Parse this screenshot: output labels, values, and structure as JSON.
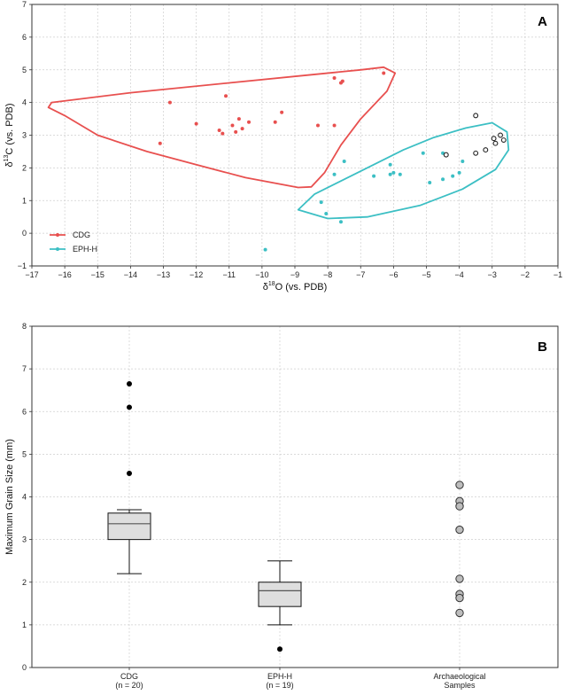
{
  "chart_data": [
    {
      "type": "scatter",
      "panel_label": "A",
      "xlabel_main": "δ",
      "xlabel_sup": "18",
      "xlabel_rest": "O (vs. PDB)",
      "ylabel_main": "δ",
      "ylabel_sup": "13",
      "ylabel_rest": "C (vs. PDB)",
      "xlim": [
        -17,
        -1
      ],
      "ylim": [
        -1,
        7
      ],
      "xticks": [
        -17,
        -16,
        -15,
        -14,
        -13,
        -12,
        -11,
        -10,
        -9,
        -8,
        -7,
        -6,
        -5,
        -4,
        -3,
        -2,
        -1
      ],
      "yticks": [
        -1,
        0,
        1,
        2,
        3,
        4,
        5,
        6,
        7
      ],
      "grid": true,
      "legend_position": "bottom-left",
      "series": [
        {
          "name": "CDG",
          "color": "#e8504f",
          "points": [
            [
              -12.8,
              4.0
            ],
            [
              -13.1,
              2.75
            ],
            [
              -12.0,
              3.35
            ],
            [
              -11.1,
              4.2
            ],
            [
              -11.3,
              3.15
            ],
            [
              -11.2,
              3.05
            ],
            [
              -10.9,
              3.3
            ],
            [
              -10.8,
              3.1
            ],
            [
              -10.7,
              3.5
            ],
            [
              -10.6,
              3.2
            ],
            [
              -10.4,
              3.4
            ],
            [
              -9.4,
              3.7
            ],
            [
              -9.6,
              3.4
            ],
            [
              -8.3,
              3.3
            ],
            [
              -7.8,
              3.3
            ],
            [
              -7.8,
              4.75
            ],
            [
              -7.6,
              4.6
            ],
            [
              -7.55,
              4.65
            ],
            [
              -6.3,
              4.9
            ]
          ],
          "envelope": [
            [
              -16.4,
              4.0
            ],
            [
              -14.0,
              4.3
            ],
            [
              -11.0,
              4.6
            ],
            [
              -8.5,
              4.85
            ],
            [
              -7.0,
              5.0
            ],
            [
              -6.3,
              5.08
            ],
            [
              -5.95,
              4.9
            ],
            [
              -6.2,
              4.35
            ],
            [
              -7.0,
              3.5
            ],
            [
              -7.6,
              2.7
            ],
            [
              -8.1,
              1.85
            ],
            [
              -8.5,
              1.42
            ],
            [
              -8.9,
              1.4
            ],
            [
              -10.5,
              1.7
            ],
            [
              -12.0,
              2.1
            ],
            [
              -13.5,
              2.5
            ],
            [
              -15.0,
              3.0
            ],
            [
              -16.0,
              3.6
            ],
            [
              -16.5,
              3.85
            ],
            [
              -16.4,
              4.0
            ]
          ]
        },
        {
          "name": "EPH-H",
          "color": "#3cbfc4",
          "points": [
            [
              -9.9,
              -0.5
            ],
            [
              -8.2,
              0.95
            ],
            [
              -8.05,
              0.6
            ],
            [
              -7.6,
              0.35
            ],
            [
              -7.8,
              1.8
            ],
            [
              -7.5,
              2.2
            ],
            [
              -6.6,
              1.75
            ],
            [
              -6.1,
              1.8
            ],
            [
              -6.1,
              2.1
            ],
            [
              -6.0,
              1.85
            ],
            [
              -5.8,
              1.8
            ],
            [
              -5.1,
              2.45
            ],
            [
              -4.9,
              1.55
            ],
            [
              -4.5,
              2.45
            ],
            [
              -4.5,
              1.65
            ],
            [
              -4.2,
              1.75
            ],
            [
              -4.0,
              1.85
            ],
            [
              -3.9,
              2.2
            ]
          ],
          "envelope": [
            [
              -7.5,
              1.65
            ],
            [
              -6.6,
              2.1
            ],
            [
              -5.7,
              2.55
            ],
            [
              -4.8,
              2.92
            ],
            [
              -3.8,
              3.22
            ],
            [
              -3.0,
              3.38
            ],
            [
              -2.55,
              3.1
            ],
            [
              -2.5,
              2.55
            ],
            [
              -2.9,
              1.95
            ],
            [
              -3.9,
              1.35
            ],
            [
              -5.2,
              0.85
            ],
            [
              -6.8,
              0.5
            ],
            [
              -8.0,
              0.45
            ],
            [
              -8.9,
              0.72
            ],
            [
              -8.4,
              1.2
            ],
            [
              -7.5,
              1.65
            ]
          ]
        }
      ],
      "open_points": [
        [
          -4.4,
          2.4
        ],
        [
          -3.5,
          3.6
        ],
        [
          -3.5,
          2.45
        ],
        [
          -3.2,
          2.55
        ],
        [
          -2.95,
          2.9
        ],
        [
          -2.9,
          2.75
        ],
        [
          -2.75,
          3.0
        ],
        [
          -2.65,
          2.85
        ]
      ]
    },
    {
      "type": "box",
      "panel_label": "B",
      "ylabel": "Maximum Grain Size (mm)",
      "ylim": [
        0,
        8
      ],
      "yticks": [
        0,
        1,
        2,
        3,
        4,
        5,
        6,
        7,
        8
      ],
      "grid": true,
      "categories": [
        {
          "label": "CDG",
          "n": "(n = 20)"
        },
        {
          "label": "EPH-H",
          "n": "(n = 19)"
        },
        {
          "label": "Archaeological",
          "n": "Samples"
        }
      ],
      "boxes": [
        {
          "category": "CDG",
          "whisker_low": 2.2,
          "q1": 3.0,
          "median": 3.37,
          "q3": 3.62,
          "whisker_high": 3.7,
          "outliers": [
            4.55,
            6.1,
            6.65
          ]
        },
        {
          "category": "EPH-H",
          "whisker_low": 1.0,
          "q1": 1.43,
          "median": 1.8,
          "q3": 2.0,
          "whisker_high": 2.5,
          "outliers": [
            0.43
          ]
        }
      ],
      "archaeological_points": [
        4.28,
        3.9,
        3.78,
        3.23,
        2.08,
        1.72,
        1.63,
        1.28
      ]
    }
  ]
}
